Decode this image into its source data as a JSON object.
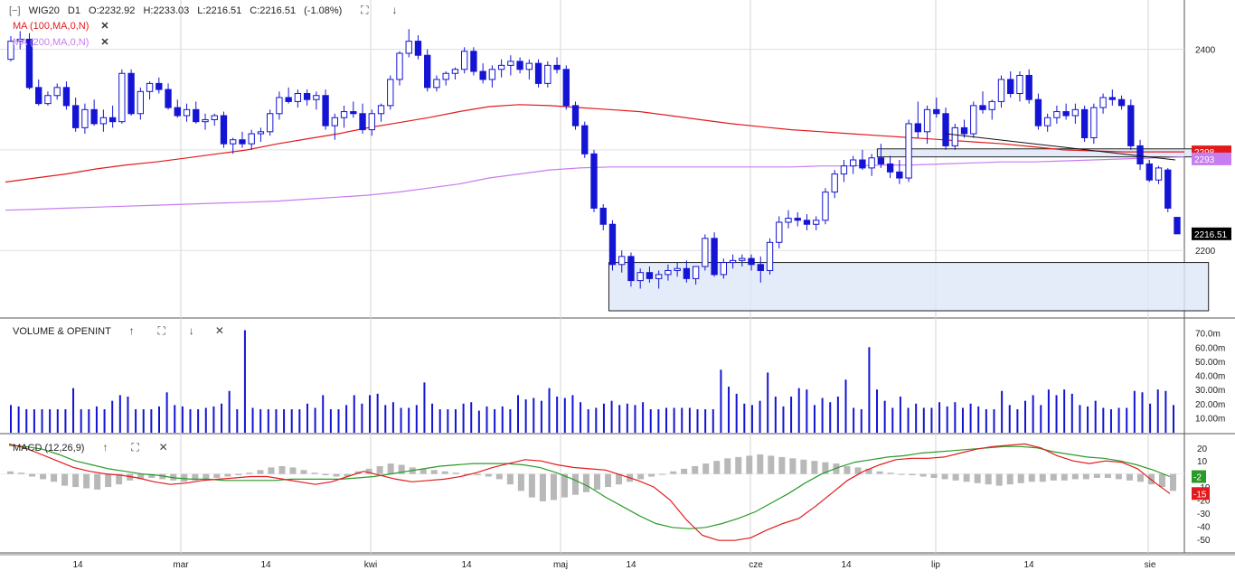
{
  "header": {
    "collapse_glyph": "[−]",
    "symbol": "WIG20",
    "interval": "D1",
    "open": "O:2232.92",
    "high": "H:2233.03",
    "low": "L:2216.51",
    "close": "C:2216.51",
    "change": "(-1.08%)",
    "ma100_label": "MA (100,MA,0,N)",
    "ma200_label": "MA (200,MA,0,N)"
  },
  "volume_panel": {
    "title": "VOLUME & OPENINT"
  },
  "macd_panel": {
    "title": "MACD (12,26,9)"
  },
  "icons": {
    "collapse": "collapse-icon",
    "maximize": "maximize-icon",
    "move_up": "arrow-up-icon",
    "move_down": "arrow-down-icon",
    "close": "close-icon"
  },
  "colors": {
    "bull": "#ffffff",
    "bear": "#1414d4",
    "candle_edge": "#1414d4",
    "ma100": "#e31a1c",
    "ma200": "#c77cf0",
    "macd": "#e31a1c",
    "signal": "#2a9a2a",
    "hist": "#b8b8b8",
    "zone_fill": "#dde6f7",
    "price_tag": "#000000"
  },
  "chart_data": [
    {
      "type": "candlestick",
      "name": "WIG20 D1",
      "x_ticks": [
        "14",
        "mar",
        "14",
        "kwi",
        "14",
        "maj",
        "14",
        "cze",
        "14",
        "lip",
        "14",
        "sie"
      ],
      "y_ticks": [
        2200,
        2400
      ],
      "price_tags": {
        "last": "2216.51",
        "ma100": "2298",
        "ma200": "2293"
      },
      "ylim": [
        2140,
        2440
      ],
      "candles": [
        [
          2390,
          2413,
          2388,
          2408
        ],
        [
          2408,
          2418,
          2400,
          2410
        ],
        [
          2410,
          2416,
          2360,
          2362
        ],
        [
          2362,
          2370,
          2344,
          2346
        ],
        [
          2346,
          2358,
          2344,
          2354
        ],
        [
          2354,
          2366,
          2350,
          2362
        ],
        [
          2362,
          2368,
          2340,
          2344
        ],
        [
          2344,
          2352,
          2318,
          2322
        ],
        [
          2322,
          2346,
          2316,
          2340
        ],
        [
          2340,
          2350,
          2324,
          2326
        ],
        [
          2326,
          2340,
          2318,
          2332
        ],
        [
          2332,
          2344,
          2322,
          2328
        ],
        [
          2328,
          2380,
          2326,
          2376
        ],
        [
          2376,
          2380,
          2334,
          2336
        ],
        [
          2336,
          2362,
          2330,
          2358
        ],
        [
          2358,
          2368,
          2350,
          2366
        ],
        [
          2366,
          2372,
          2356,
          2360
        ],
        [
          2360,
          2366,
          2340,
          2342
        ],
        [
          2342,
          2350,
          2332,
          2334
        ],
        [
          2334,
          2346,
          2328,
          2340
        ],
        [
          2340,
          2348,
          2326,
          2328
        ],
        [
          2328,
          2336,
          2320,
          2330
        ],
        [
          2330,
          2336,
          2324,
          2334
        ],
        [
          2334,
          2338,
          2302,
          2306
        ],
        [
          2306,
          2312,
          2296,
          2310
        ],
        [
          2310,
          2318,
          2302,
          2306
        ],
        [
          2306,
          2320,
          2300,
          2316
        ],
        [
          2316,
          2322,
          2308,
          2318
        ],
        [
          2318,
          2340,
          2314,
          2336
        ],
        [
          2336,
          2358,
          2330,
          2352
        ],
        [
          2352,
          2362,
          2346,
          2348
        ],
        [
          2348,
          2360,
          2342,
          2356
        ],
        [
          2356,
          2360,
          2344,
          2350
        ],
        [
          2350,
          2358,
          2340,
          2354
        ],
        [
          2354,
          2360,
          2320,
          2324
        ],
        [
          2324,
          2336,
          2310,
          2332
        ],
        [
          2332,
          2344,
          2322,
          2338
        ],
        [
          2338,
          2348,
          2332,
          2336
        ],
        [
          2336,
          2346,
          2316,
          2320
        ],
        [
          2320,
          2340,
          2314,
          2336
        ],
        [
          2336,
          2346,
          2328,
          2344
        ],
        [
          2344,
          2374,
          2340,
          2370
        ],
        [
          2370,
          2398,
          2364,
          2396
        ],
        [
          2396,
          2420,
          2392,
          2408
        ],
        [
          2408,
          2414,
          2390,
          2394
        ],
        [
          2394,
          2400,
          2358,
          2362
        ],
        [
          2362,
          2374,
          2358,
          2370
        ],
        [
          2370,
          2378,
          2364,
          2376
        ],
        [
          2376,
          2382,
          2370,
          2380
        ],
        [
          2380,
          2402,
          2376,
          2398
        ],
        [
          2398,
          2402,
          2374,
          2378
        ],
        [
          2378,
          2386,
          2366,
          2370
        ],
        [
          2370,
          2384,
          2362,
          2380
        ],
        [
          2380,
          2390,
          2372,
          2384
        ],
        [
          2384,
          2394,
          2374,
          2388
        ],
        [
          2388,
          2392,
          2376,
          2380
        ],
        [
          2380,
          2390,
          2370,
          2386
        ],
        [
          2386,
          2390,
          2362,
          2366
        ],
        [
          2366,
          2388,
          2362,
          2384
        ],
        [
          2384,
          2392,
          2376,
          2380
        ],
        [
          2380,
          2384,
          2340,
          2344
        ],
        [
          2344,
          2348,
          2320,
          2324
        ],
        [
          2324,
          2328,
          2292,
          2296
        ],
        [
          2296,
          2300,
          2238,
          2242
        ],
        [
          2242,
          2246,
          2220,
          2226
        ],
        [
          2226,
          2230,
          2180,
          2186
        ],
        [
          2186,
          2200,
          2178,
          2194
        ],
        [
          2194,
          2198,
          2164,
          2170
        ],
        [
          2170,
          2182,
          2162,
          2178
        ],
        [
          2178,
          2184,
          2168,
          2172
        ],
        [
          2172,
          2180,
          2162,
          2176
        ],
        [
          2176,
          2186,
          2170,
          2180
        ],
        [
          2180,
          2188,
          2174,
          2182
        ],
        [
          2182,
          2190,
          2168,
          2172
        ],
        [
          2172,
          2184,
          2166,
          2184
        ],
        [
          2184,
          2216,
          2180,
          2212
        ],
        [
          2212,
          2218,
          2174,
          2176
        ],
        [
          2176,
          2192,
          2172,
          2188
        ],
        [
          2188,
          2196,
          2182,
          2190
        ],
        [
          2190,
          2196,
          2184,
          2192
        ],
        [
          2192,
          2196,
          2180,
          2186
        ],
        [
          2186,
          2194,
          2168,
          2180
        ],
        [
          2180,
          2212,
          2176,
          2208
        ],
        [
          2208,
          2234,
          2202,
          2228
        ],
        [
          2228,
          2240,
          2222,
          2232
        ],
        [
          2232,
          2238,
          2224,
          2230
        ],
        [
          2230,
          2236,
          2220,
          2226
        ],
        [
          2226,
          2234,
          2220,
          2230
        ],
        [
          2230,
          2262,
          2226,
          2258
        ],
        [
          2258,
          2280,
          2252,
          2276
        ],
        [
          2276,
          2290,
          2268,
          2284
        ],
        [
          2284,
          2294,
          2276,
          2290
        ],
        [
          2290,
          2300,
          2280,
          2282
        ],
        [
          2282,
          2296,
          2274,
          2292
        ],
        [
          2292,
          2306,
          2282,
          2286
        ],
        [
          2286,
          2294,
          2272,
          2278
        ],
        [
          2278,
          2290,
          2266,
          2272
        ],
        [
          2272,
          2330,
          2268,
          2326
        ],
        [
          2326,
          2348,
          2312,
          2318
        ],
        [
          2318,
          2344,
          2306,
          2340
        ],
        [
          2340,
          2352,
          2332,
          2336
        ],
        [
          2336,
          2342,
          2300,
          2304
        ],
        [
          2304,
          2326,
          2300,
          2322
        ],
        [
          2322,
          2330,
          2312,
          2316
        ],
        [
          2316,
          2348,
          2312,
          2344
        ],
        [
          2344,
          2358,
          2336,
          2340
        ],
        [
          2340,
          2350,
          2330,
          2348
        ],
        [
          2348,
          2374,
          2342,
          2370
        ],
        [
          2370,
          2378,
          2352,
          2356
        ],
        [
          2356,
          2378,
          2348,
          2374
        ],
        [
          2374,
          2380,
          2346,
          2350
        ],
        [
          2350,
          2356,
          2320,
          2324
        ],
        [
          2324,
          2336,
          2318,
          2332
        ],
        [
          2332,
          2344,
          2326,
          2338
        ],
        [
          2338,
          2346,
          2330,
          2334
        ],
        [
          2334,
          2346,
          2326,
          2340
        ],
        [
          2340,
          2344,
          2308,
          2312
        ],
        [
          2312,
          2346,
          2306,
          2342
        ],
        [
          2342,
          2356,
          2336,
          2352
        ],
        [
          2352,
          2360,
          2344,
          2350
        ],
        [
          2350,
          2354,
          2340,
          2344
        ],
        [
          2344,
          2350,
          2300,
          2304
        ],
        [
          2304,
          2310,
          2280,
          2286
        ],
        [
          2286,
          2290,
          2268,
          2270
        ],
        [
          2270,
          2284,
          2266,
          2282
        ],
        [
          2280,
          2282,
          2238,
          2242
        ],
        [
          2232.92,
          2233.03,
          2216.51,
          2216.51
        ]
      ],
      "ma100": [
        2268,
        2272,
        2276,
        2281,
        2285,
        2288,
        2292,
        2296,
        2300,
        2306,
        2311,
        2316,
        2322,
        2327,
        2332,
        2338,
        2343,
        2345,
        2344,
        2342,
        2340,
        2338,
        2334,
        2330,
        2326,
        2323,
        2320,
        2318,
        2316,
        2314,
        2312,
        2310,
        2308,
        2306,
        2303,
        2300,
        2299,
        2298,
        2298,
        2298
      ],
      "ma200": [
        2240,
        2241,
        2242,
        2243,
        2244,
        2245,
        2246,
        2247,
        2248,
        2249,
        2251,
        2253,
        2255,
        2258,
        2262,
        2266,
        2272,
        2276,
        2280,
        2282,
        2283,
        2283,
        2283,
        2283,
        2283,
        2283,
        2283,
        2284,
        2284,
        2285,
        2285,
        2286,
        2287,
        2288,
        2288,
        2289,
        2290,
        2291,
        2292,
        2293
      ],
      "zones": [
        {
          "from_index": 65,
          "to_index": 129,
          "low": 2140,
          "high": 2188
        },
        {
          "from_index": 94,
          "to_index": 129,
          "low": 2293,
          "high": 2301
        }
      ],
      "trendline": {
        "from_index": 101,
        "to_index": 130,
        "from_value": 2316,
        "to_value": 2290
      }
    },
    {
      "type": "bar",
      "name": "Volume",
      "y_ticks": [
        "10.00m",
        "20.00m",
        "30.00m",
        "40.00m",
        "50.00m",
        "60.00m",
        "70.0m"
      ],
      "ylim": [
        0,
        73
      ],
      "values": [
        19,
        18,
        16,
        16,
        16,
        16,
        16,
        16,
        31,
        16,
        16,
        18,
        16,
        22,
        26,
        25,
        16,
        16,
        16,
        18,
        28,
        19,
        18,
        16,
        16,
        17,
        18,
        20,
        29,
        16,
        72,
        17,
        16,
        16,
        16,
        16,
        16,
        16,
        20,
        17,
        26,
        16,
        16,
        19,
        26,
        20,
        26,
        27,
        19,
        21,
        17,
        17,
        19,
        35,
        20,
        16,
        16,
        16,
        20,
        21,
        15,
        18,
        16,
        18,
        16,
        26,
        23,
        24,
        22,
        31,
        25,
        24,
        26,
        21,
        16,
        17,
        20,
        22,
        19,
        20,
        19,
        21,
        16,
        16,
        17,
        17,
        17,
        17,
        16,
        16,
        16,
        44,
        32,
        27,
        20,
        19,
        22,
        42,
        25,
        18,
        25,
        31,
        30,
        19,
        24,
        21,
        25,
        37,
        17,
        16,
        60,
        30,
        22,
        17,
        25,
        17,
        20,
        17,
        17,
        21,
        18,
        21,
        17,
        20,
        18,
        16,
        16,
        29,
        19,
        16,
        22,
        26,
        19,
        30,
        26,
        30,
        27,
        19,
        18,
        22,
        17,
        16,
        17,
        17,
        29,
        28,
        20,
        30,
        29,
        19
      ]
    },
    {
      "type": "line",
      "name": "MACD (12,26,9)",
      "y_ticks": [
        20,
        10,
        -10,
        -20,
        -30,
        -40,
        -50
      ],
      "ylim": [
        -55,
        24
      ],
      "value_tags": {
        "signal": "-2",
        "macd": "-15"
      },
      "macd": [
        23,
        20,
        15,
        10,
        5,
        2,
        0,
        -1,
        -3,
        -6,
        -8,
        -7,
        -5,
        -4,
        -3,
        -2,
        -2,
        -4,
        -6,
        -8,
        -6,
        -2,
        2,
        -1,
        -4,
        -6,
        -5,
        -4,
        -2,
        1,
        5,
        8,
        11,
        10,
        7,
        5,
        4,
        3,
        -1,
        -5,
        -10,
        -20,
        -35,
        -47,
        -51,
        -51,
        -49,
        -43,
        -38,
        -34,
        -25,
        -15,
        -5,
        2,
        7,
        11,
        12,
        12,
        13,
        16,
        19,
        21,
        22,
        23,
        20,
        14,
        10,
        8,
        10,
        9,
        4,
        -6,
        -15
      ],
      "signal": [
        22,
        21,
        19,
        15,
        10,
        7,
        4,
        2,
        0,
        -1,
        -3,
        -4,
        -4,
        -5,
        -5,
        -5,
        -5,
        -4,
        -4,
        -4,
        -4,
        -3,
        -2,
        0,
        2,
        4,
        6,
        7,
        8,
        8,
        8,
        7,
        5,
        1,
        -4,
        -10,
        -18,
        -25,
        -32,
        -38,
        -41,
        -42,
        -41,
        -38,
        -34,
        -29,
        -22,
        -15,
        -7,
        0,
        5,
        9,
        11,
        13,
        14,
        16,
        17,
        18,
        19,
        20,
        21,
        21,
        20,
        17,
        15,
        13,
        12,
        10,
        7,
        3,
        -2
      ],
      "histogram": [
        2,
        1,
        -2,
        -4,
        -6,
        -9,
        -10,
        -11,
        -12,
        -10,
        -8,
        -5,
        -4,
        -3,
        -4,
        -5,
        -6,
        -5,
        -4,
        -3,
        -2,
        -1,
        1,
        3,
        5,
        6,
        5,
        3,
        1,
        -1,
        -2,
        -2,
        2,
        4,
        6,
        8,
        7,
        5,
        4,
        3,
        2,
        1,
        0,
        -1,
        -2,
        -4,
        -8,
        -13,
        -18,
        -21,
        -20,
        -18,
        -16,
        -14,
        -12,
        -10,
        -8,
        -6,
        -4,
        -2,
        0,
        2,
        4,
        6,
        8,
        10,
        12,
        13,
        14,
        15,
        14,
        13,
        12,
        11,
        10,
        9,
        8,
        6,
        5,
        4,
        2,
        1,
        0,
        -1,
        -2,
        -3,
        -4,
        -5,
        -6,
        -7,
        -8,
        -9,
        -8,
        -7,
        -6,
        -6,
        -5,
        -5,
        -4,
        -4,
        -3,
        -3,
        -4,
        -5,
        -6,
        -8,
        -10,
        -13
      ]
    }
  ]
}
